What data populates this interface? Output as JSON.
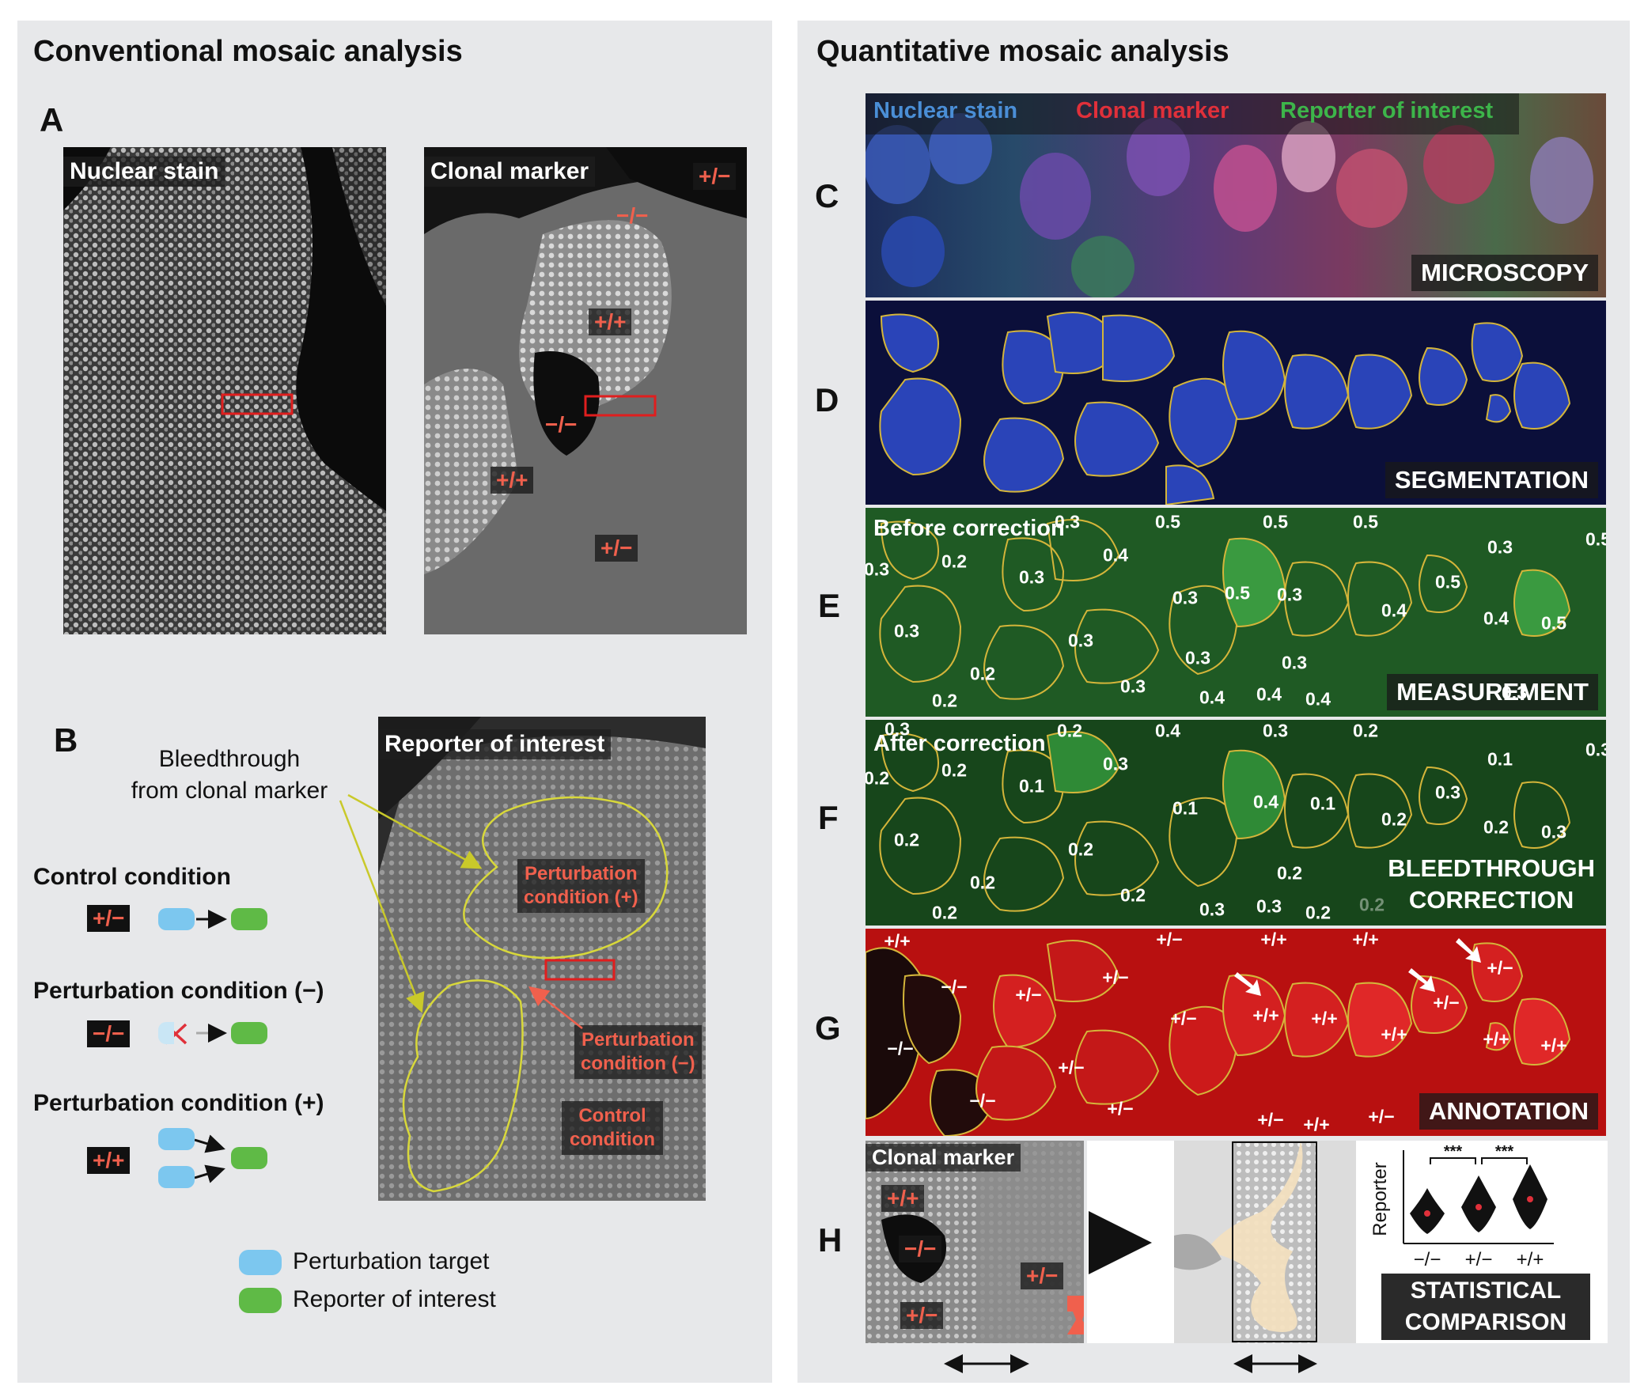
{
  "left_panel": {
    "title": "Conventional mosaic analysis",
    "panel_a": {
      "letter": "A",
      "nuclear_label": "Nuclear stain",
      "clonal_label": "Clonal marker",
      "genotypes": [
        "+/−",
        "−/−",
        "+/+",
        "−/−",
        "+/+",
        "+/−"
      ]
    },
    "panel_b": {
      "letter": "B",
      "bleed_label_1": "Bleedthrough",
      "bleed_label_2": "from clonal marker",
      "reporter_label": "Reporter of interest",
      "perturb_plus_1": "Perturbation",
      "perturb_plus_2": "condition (+)",
      "perturb_minus_1": "Perturbation",
      "perturb_minus_2": "condition (−)",
      "control_1": "Control",
      "control_2": "condition",
      "conditions": [
        {
          "title": "Control condition",
          "genotype": "+/−"
        },
        {
          "title": "Perturbation condition (−)",
          "genotype": "−/−"
        },
        {
          "title": "Perturbation condition (+)",
          "genotype": "+/+"
        }
      ],
      "legend": [
        {
          "label": "Perturbation target",
          "color": "#7cc7ef"
        },
        {
          "label": "Reporter of interest",
          "color": "#5fba46"
        }
      ]
    }
  },
  "right_panel": {
    "title": "Quantitative mosaic analysis",
    "channel_labels": [
      {
        "text": "Nuclear stain",
        "color": "#4a8ed6"
      },
      {
        "text": "Clonal marker",
        "color": "#e0303a"
      },
      {
        "text": "Reporter of interest",
        "color": "#3db54a"
      }
    ],
    "rows": [
      {
        "letter": "C",
        "stage": "MICROSCOPY"
      },
      {
        "letter": "D",
        "stage": "SEGMENTATION"
      },
      {
        "letter": "E",
        "stage": "MEASUREMENT",
        "note": "Before correction",
        "values": [
          "0.3",
          "0.5",
          "0.5",
          "0.5",
          "0.4",
          "0.2",
          "0.3",
          "0.3",
          "0.3",
          "0.3",
          "0.5",
          "0.3",
          "0.4",
          "0.5",
          "0.5",
          "0.3",
          "0.4",
          "0.5",
          "0.3",
          "0.2",
          "0.3",
          "0.3",
          "0.2",
          "0.4",
          "0.4",
          "0.4",
          "0.3",
          "0.3"
        ]
      },
      {
        "letter": "F",
        "stage_1": "BLEEDTHROUGH",
        "stage_2": "CORRECTION",
        "note": "After correction",
        "values": [
          "0.3",
          "0.2",
          "0.4",
          "0.3",
          "0.2",
          "0.3",
          "0.2",
          "0.2",
          "0.1",
          "0.1",
          "0.4",
          "0.1",
          "0.2",
          "0.3",
          "0.1",
          "0.3",
          "0.2",
          "0.3",
          "0.2",
          "0.2",
          "0.2",
          "0.2",
          "0.2",
          "0.3",
          "0.3",
          "0.2",
          "0.2",
          "0.2"
        ]
      },
      {
        "letter": "G",
        "stage": "ANNOTATION",
        "values": [
          "+/+",
          "+/−",
          "+/+",
          "+/+",
          "−/−",
          "+/−",
          "+/−",
          "+/−",
          "+/+",
          "+/+",
          "+/−",
          "+/−",
          "−/−",
          "+/+",
          "+/+",
          "+/+",
          "+/−",
          "−/−",
          "+/−",
          "+/−",
          "+/+",
          "+/−"
        ]
      },
      {
        "letter": "H",
        "clonal_label": "Clonal marker",
        "genotypes": [
          "+/+",
          "−/−",
          "+/−",
          "+/−"
        ],
        "stage_1": "STATISTICAL",
        "stage_2": "COMPARISON"
      }
    ],
    "violin": {
      "ylabel": "Reporter",
      "categories": [
        "−/−",
        "+/−",
        "+/+"
      ],
      "significance": [
        "***",
        "***"
      ]
    }
  }
}
